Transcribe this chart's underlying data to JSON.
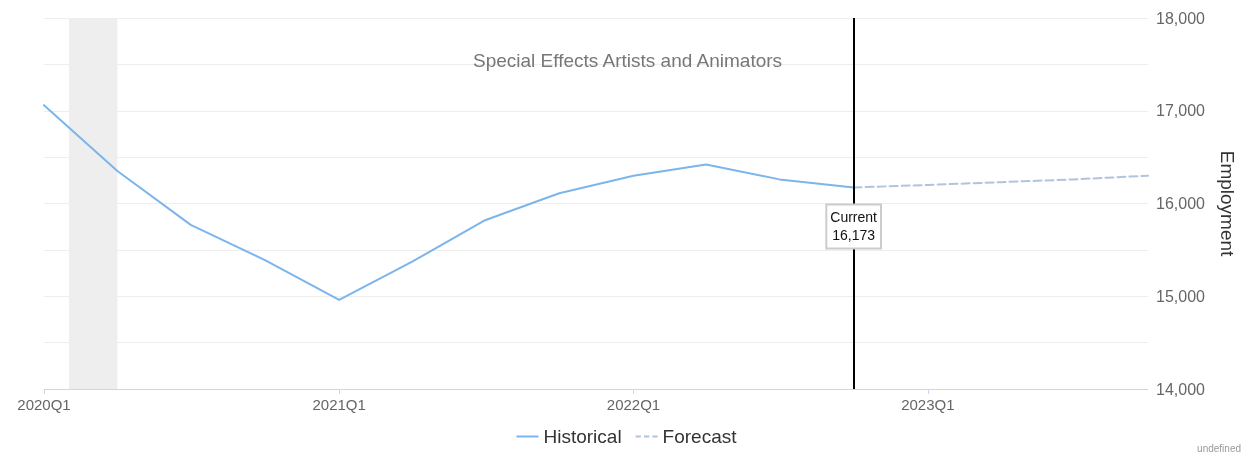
{
  "chart_data": {
    "type": "line",
    "title": "Special Effects Artists and Animators",
    "ylabel": "Employment",
    "xlim": [
      "2020-01",
      "2023-10"
    ],
    "xticks": [
      {
        "value": "2020-01",
        "label": "2020Q1"
      },
      {
        "value": "2021-01",
        "label": "2021Q1"
      },
      {
        "value": "2022-01",
        "label": "2022Q1"
      },
      {
        "value": "2023-01",
        "label": "2023Q1"
      }
    ],
    "ylim": [
      14000,
      18000
    ],
    "yticks": [
      {
        "value": 14000,
        "label": "14,000"
      },
      {
        "value": 14500,
        "label": null
      },
      {
        "value": 15000,
        "label": "15,000"
      },
      {
        "value": 15500,
        "label": null
      },
      {
        "value": 16000,
        "label": "16,000"
      },
      {
        "value": 16500,
        "label": null
      },
      {
        "value": 17000,
        "label": "17,000"
      },
      {
        "value": 17500,
        "label": null
      },
      {
        "value": 18000,
        "label": "18,000"
      }
    ],
    "series": [
      {
        "name": "Historical",
        "color": "#7cb5ec",
        "line_style": "solid",
        "x": [
          "2020-01",
          "2020-04",
          "2020-07",
          "2020-10",
          "2021-01",
          "2021-04",
          "2021-07",
          "2021-10",
          "2022-01",
          "2022-04",
          "2022-07",
          "2022-10"
        ],
        "values": [
          17060,
          16350,
          15770,
          15390,
          14960,
          15370,
          15820,
          16110,
          16300,
          16420,
          16260,
          16173
        ]
      },
      {
        "name": "Forecast",
        "color": "#b0c4de",
        "line_style": "dashed",
        "x": [
          "2022-10",
          "2023-01",
          "2023-04",
          "2023-07",
          "2023-10"
        ],
        "values": [
          16173,
          16200,
          16230,
          16260,
          16300
        ]
      }
    ],
    "bands": [
      {
        "axis": "x",
        "from": "2020-02",
        "to": "2020-04",
        "color": "#eeeeee"
      }
    ],
    "ref_lines": [
      {
        "axis": "x",
        "value": "2022-10",
        "color": "#000000"
      }
    ],
    "annotations": [
      {
        "text": "Current\n16,173",
        "x": "2022-10",
        "y": 16173
      },
      "undefined"
    ],
    "grid": "y",
    "legend": "bottom",
    "marker": "none"
  }
}
